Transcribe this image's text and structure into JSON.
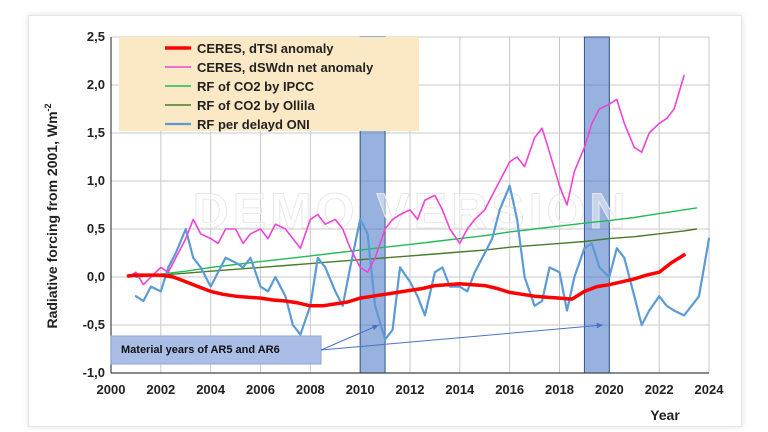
{
  "watermark": "DEMO VERSION",
  "chart_data": {
    "type": "line",
    "xlabel": "Year",
    "ylabel": "Radiative forcing from 2001,  Wm",
    "ylabel_sup": "-2",
    "xlim": [
      2000,
      2024
    ],
    "ylim": [
      -1.0,
      2.5
    ],
    "x_ticks": [
      "2000",
      "2002",
      "2004",
      "2006",
      "2008",
      "2010",
      "2012",
      "2014",
      "2016",
      "2018",
      "2020",
      "2022",
      "2024"
    ],
    "y_ticks": [
      "2,5",
      "2,0",
      "1,5",
      "1,0",
      "0,5",
      "0,0",
      "-0,5",
      "-1,0"
    ],
    "grid": true,
    "legend_position": "top-left",
    "highlight_periods": [
      [
        2010.0,
        2011.0
      ],
      [
        2019.0,
        2020.0
      ]
    ],
    "annotation": "Material years of AR5 and AR6",
    "series": [
      {
        "name": "CERES, dTSI anomaly",
        "color": "#ff0000",
        "width": 3.5,
        "x": [
          2000.7,
          2001.0,
          2001.5,
          2002.0,
          2002.5,
          2003.0,
          2003.5,
          2004.0,
          2004.5,
          2005.0,
          2005.5,
          2006.0,
          2006.5,
          2007.0,
          2007.5,
          2008.0,
          2008.5,
          2009.0,
          2009.5,
          2010.0,
          2010.5,
          2011.0,
          2011.5,
          2012.0,
          2012.5,
          2013.0,
          2013.5,
          2014.0,
          2014.5,
          2015.0,
          2015.5,
          2016.0,
          2016.5,
          2017.0,
          2017.5,
          2018.0,
          2018.5,
          2019.0,
          2019.5,
          2020.0,
          2020.5,
          2021.0,
          2021.5,
          2022.0,
          2022.5,
          2023.0
        ],
        "y": [
          0.01,
          0.02,
          0.02,
          0.02,
          0.0,
          -0.05,
          -0.1,
          -0.15,
          -0.18,
          -0.2,
          -0.21,
          -0.22,
          -0.24,
          -0.25,
          -0.27,
          -0.3,
          -0.3,
          -0.28,
          -0.26,
          -0.22,
          -0.2,
          -0.18,
          -0.16,
          -0.14,
          -0.12,
          -0.09,
          -0.08,
          -0.07,
          -0.08,
          -0.09,
          -0.12,
          -0.16,
          -0.18,
          -0.2,
          -0.21,
          -0.22,
          -0.23,
          -0.15,
          -0.1,
          -0.08,
          -0.05,
          -0.02,
          0.02,
          0.05,
          0.15,
          0.23
        ]
      },
      {
        "name": "CERES, dSWdn net anomaly",
        "color": "#ee44d4",
        "width": 1.6,
        "x": [
          2000.7,
          2001.0,
          2001.3,
          2001.6,
          2002.0,
          2002.3,
          2002.6,
          2003.0,
          2003.3,
          2003.6,
          2004.0,
          2004.3,
          2004.6,
          2005.0,
          2005.3,
          2005.6,
          2006.0,
          2006.3,
          2006.6,
          2007.0,
          2007.3,
          2007.6,
          2008.0,
          2008.3,
          2008.6,
          2009.0,
          2009.3,
          2009.6,
          2010.0,
          2010.3,
          2010.6,
          2011.0,
          2011.3,
          2011.6,
          2012.0,
          2012.3,
          2012.6,
          2013.0,
          2013.3,
          2013.6,
          2014.0,
          2014.3,
          2014.6,
          2015.0,
          2015.3,
          2015.6,
          2016.0,
          2016.3,
          2016.6,
          2017.0,
          2017.3,
          2017.6,
          2018.0,
          2018.3,
          2018.6,
          2019.0,
          2019.3,
          2019.6,
          2020.0,
          2020.3,
          2020.6,
          2021.0,
          2021.3,
          2021.6,
          2022.0,
          2022.3,
          2022.6,
          2023.0
        ],
        "y": [
          0.0,
          0.05,
          -0.08,
          0.0,
          0.1,
          0.05,
          0.2,
          0.4,
          0.6,
          0.45,
          0.4,
          0.35,
          0.5,
          0.5,
          0.35,
          0.45,
          0.5,
          0.4,
          0.55,
          0.5,
          0.4,
          0.3,
          0.6,
          0.65,
          0.55,
          0.6,
          0.5,
          0.3,
          0.1,
          0.05,
          0.2,
          0.5,
          0.6,
          0.65,
          0.7,
          0.6,
          0.8,
          0.85,
          0.7,
          0.5,
          0.35,
          0.5,
          0.6,
          0.7,
          0.85,
          1.0,
          1.2,
          1.25,
          1.15,
          1.45,
          1.55,
          1.3,
          0.95,
          0.75,
          1.1,
          1.35,
          1.6,
          1.75,
          1.8,
          1.85,
          1.6,
          1.35,
          1.3,
          1.5,
          1.6,
          1.65,
          1.75,
          2.1
        ]
      },
      {
        "name": "RF of CO2 by IPCC",
        "color": "#22bb55",
        "width": 1.4,
        "x": [
          2001,
          2002,
          2003,
          2004,
          2005,
          2006,
          2007,
          2008,
          2009,
          2010,
          2011,
          2012,
          2013,
          2014,
          2015,
          2016,
          2017,
          2018,
          2019,
          2020,
          2021,
          2022,
          2023,
          2023.5
        ],
        "y": [
          0.0,
          0.03,
          0.06,
          0.1,
          0.13,
          0.16,
          0.19,
          0.22,
          0.25,
          0.28,
          0.31,
          0.34,
          0.37,
          0.4,
          0.43,
          0.47,
          0.5,
          0.53,
          0.56,
          0.59,
          0.62,
          0.66,
          0.7,
          0.72
        ]
      },
      {
        "name": "RF of CO2 by Ollila",
        "color": "#4a7a2a",
        "width": 1.4,
        "x": [
          2001,
          2002,
          2003,
          2004,
          2005,
          2006,
          2007,
          2008,
          2009,
          2010,
          2011,
          2012,
          2013,
          2014,
          2015,
          2016,
          2017,
          2018,
          2019,
          2020,
          2021,
          2022,
          2023,
          2023.5
        ],
        "y": [
          0.0,
          0.02,
          0.04,
          0.06,
          0.08,
          0.1,
          0.12,
          0.14,
          0.16,
          0.18,
          0.2,
          0.22,
          0.24,
          0.26,
          0.28,
          0.31,
          0.33,
          0.35,
          0.37,
          0.4,
          0.42,
          0.45,
          0.48,
          0.5
        ]
      },
      {
        "name": "RF per delayd ONI",
        "color": "#5b9bd5",
        "width": 2.2,
        "x": [
          2001.0,
          2001.3,
          2001.6,
          2002.0,
          2002.3,
          2002.6,
          2003.0,
          2003.3,
          2003.6,
          2004.0,
          2004.3,
          2004.6,
          2005.0,
          2005.3,
          2005.6,
          2006.0,
          2006.3,
          2006.6,
          2007.0,
          2007.3,
          2007.6,
          2008.0,
          2008.3,
          2008.6,
          2009.0,
          2009.3,
          2009.6,
          2010.0,
          2010.3,
          2010.6,
          2011.0,
          2011.3,
          2011.6,
          2012.0,
          2012.3,
          2012.6,
          2013.0,
          2013.3,
          2013.6,
          2014.0,
          2014.3,
          2014.6,
          2015.0,
          2015.3,
          2015.6,
          2016.0,
          2016.3,
          2016.6,
          2017.0,
          2017.3,
          2017.6,
          2018.0,
          2018.3,
          2018.6,
          2019.0,
          2019.3,
          2019.6,
          2020.0,
          2020.3,
          2020.6,
          2021.0,
          2021.3,
          2021.6,
          2022.0,
          2022.3,
          2022.6,
          2023.0,
          2023.3,
          2023.6,
          2024.0
        ],
        "y": [
          -0.2,
          -0.25,
          -0.1,
          -0.15,
          0.1,
          0.25,
          0.5,
          0.2,
          0.1,
          -0.1,
          0.05,
          0.2,
          0.15,
          0.1,
          0.2,
          -0.1,
          -0.15,
          0.0,
          -0.2,
          -0.5,
          -0.6,
          -0.3,
          0.2,
          0.1,
          -0.15,
          -0.3,
          0.1,
          0.6,
          0.45,
          -0.3,
          -0.65,
          -0.55,
          0.1,
          -0.05,
          -0.2,
          -0.4,
          0.05,
          0.1,
          -0.1,
          -0.1,
          -0.15,
          0.05,
          0.25,
          0.4,
          0.7,
          0.95,
          0.6,
          0.0,
          -0.3,
          -0.25,
          0.1,
          0.05,
          -0.35,
          0.0,
          0.3,
          0.35,
          0.1,
          0.0,
          0.3,
          0.2,
          -0.2,
          -0.5,
          -0.35,
          -0.2,
          -0.3,
          -0.35,
          -0.4,
          -0.3,
          -0.2,
          0.4
        ]
      }
    ]
  }
}
